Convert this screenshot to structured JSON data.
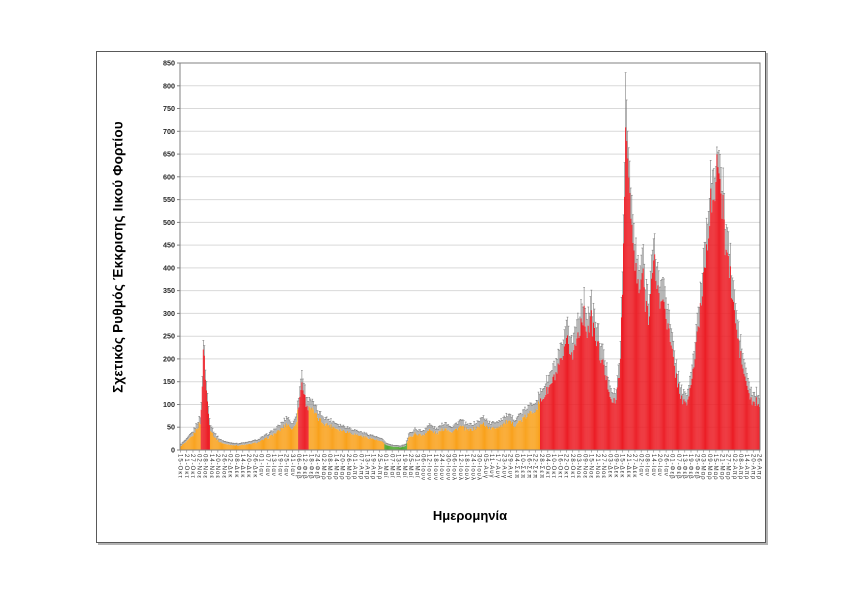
{
  "figure_title": "",
  "chart_data": {
    "type": "bar",
    "title": "",
    "ylabel": "Σχετικός Ρυθμός Έκκρισης Ιικού Φορτίου",
    "xlabel": "Ημερομηνία",
    "ylim": [
      0,
      850
    ],
    "ytick_step": 50,
    "grid": true,
    "legend": "none",
    "x_start_date": "2020-10-15",
    "num_days": 559,
    "xtick_every_days": 6,
    "months_el": [
      "Ιαν",
      "Φεβ",
      "Μαρ",
      "Απρ",
      "Μαϊ",
      "Ιουν",
      "Ιουλ",
      "Αυγ",
      "Σεπ",
      "Οκτ",
      "Νοε",
      "Δεκ"
    ],
    "colors": {
      "orange": "#F9A11B",
      "red": "#EC1C24",
      "green": "#4EA72E",
      "error": "#7F7F7F",
      "grid": "#D9D9D9",
      "axis": "#808080",
      "tick_text": "#262626",
      "xtick_text": "#333333"
    },
    "jitter_frac": 0.09,
    "anchors_format": [
      "day_index",
      "value",
      "error_plus",
      "color(o=orange,r=red,g=green)"
    ],
    "anchors": [
      [
        0,
        8,
        4,
        "o"
      ],
      [
        6,
        18,
        6,
        "o"
      ],
      [
        12,
        32,
        9,
        "o"
      ],
      [
        16,
        48,
        12,
        "o"
      ],
      [
        19,
        60,
        14,
        "o"
      ],
      [
        20,
        85,
        16,
        "r"
      ],
      [
        21,
        150,
        22,
        "r"
      ],
      [
        22,
        225,
        20,
        "r"
      ],
      [
        23,
        195,
        22,
        "r"
      ],
      [
        25,
        130,
        20,
        "r"
      ],
      [
        27,
        80,
        16,
        "r"
      ],
      [
        28,
        60,
        14,
        "r"
      ],
      [
        29,
        45,
        12,
        "o"
      ],
      [
        33,
        28,
        9,
        "o"
      ],
      [
        38,
        17,
        6,
        "o"
      ],
      [
        45,
        12,
        5,
        "o"
      ],
      [
        55,
        10,
        4,
        "o"
      ],
      [
        65,
        12,
        5,
        "o"
      ],
      [
        75,
        17,
        6,
        "o"
      ],
      [
        85,
        28,
        8,
        "o"
      ],
      [
        95,
        42,
        11,
        "o"
      ],
      [
        103,
        58,
        16,
        "o"
      ],
      [
        108,
        44,
        12,
        "o"
      ],
      [
        112,
        66,
        18,
        "o"
      ],
      [
        114,
        100,
        20,
        "r"
      ],
      [
        117,
        148,
        26,
        "r"
      ],
      [
        120,
        115,
        22,
        "r"
      ],
      [
        122,
        92,
        18,
        "r"
      ],
      [
        124,
        98,
        20,
        "o"
      ],
      [
        128,
        84,
        18,
        "o"
      ],
      [
        133,
        68,
        15,
        "o"
      ],
      [
        139,
        58,
        14,
        "o"
      ],
      [
        146,
        52,
        12,
        "o"
      ],
      [
        153,
        45,
        11,
        "o"
      ],
      [
        161,
        40,
        10,
        "o"
      ],
      [
        169,
        34,
        9,
        "o"
      ],
      [
        177,
        29,
        8,
        "o"
      ],
      [
        186,
        24,
        7,
        "o"
      ],
      [
        194,
        18,
        6,
        "o"
      ],
      [
        199,
        10,
        4,
        "g"
      ],
      [
        205,
        7,
        3,
        "g"
      ],
      [
        212,
        6,
        3,
        "g"
      ],
      [
        217,
        9,
        4,
        "g"
      ],
      [
        220,
        26,
        8,
        "o"
      ],
      [
        226,
        36,
        10,
        "o"
      ],
      [
        233,
        32,
        9,
        "o"
      ],
      [
        240,
        44,
        12,
        "o"
      ],
      [
        247,
        36,
        10,
        "o"
      ],
      [
        255,
        48,
        13,
        "o"
      ],
      [
        262,
        40,
        11,
        "o"
      ],
      [
        270,
        52,
        14,
        "o"
      ],
      [
        277,
        43,
        11,
        "o"
      ],
      [
        285,
        48,
        12,
        "o"
      ],
      [
        292,
        58,
        15,
        "o"
      ],
      [
        299,
        46,
        12,
        "o"
      ],
      [
        307,
        52,
        13,
        "o"
      ],
      [
        315,
        62,
        15,
        "o"
      ],
      [
        322,
        55,
        13,
        "o"
      ],
      [
        330,
        68,
        16,
        "o"
      ],
      [
        338,
        82,
        18,
        "o"
      ],
      [
        344,
        95,
        20,
        "o"
      ],
      [
        348,
        110,
        22,
        "r"
      ],
      [
        355,
        135,
        26,
        "r"
      ],
      [
        362,
        165,
        30,
        "r"
      ],
      [
        368,
        195,
        34,
        "r"
      ],
      [
        373,
        235,
        40,
        "r"
      ],
      [
        378,
        205,
        36,
        "r"
      ],
      [
        383,
        255,
        42,
        "r"
      ],
      [
        388,
        300,
        40,
        "r"
      ],
      [
        392,
        265,
        40,
        "r"
      ],
      [
        396,
        282,
        44,
        "r"
      ],
      [
        401,
        238,
        40,
        "r"
      ],
      [
        406,
        195,
        35,
        "r"
      ],
      [
        410,
        160,
        30,
        "r"
      ],
      [
        414,
        125,
        24,
        "r"
      ],
      [
        417,
        103,
        20,
        "r"
      ],
      [
        420,
        110,
        22,
        "r"
      ],
      [
        423,
        170,
        32,
        "r"
      ],
      [
        426,
        320,
        50,
        "r"
      ],
      [
        428,
        560,
        75,
        "r"
      ],
      [
        429,
        710,
        120,
        "r"
      ],
      [
        431,
        655,
        60,
        "r"
      ],
      [
        433,
        540,
        70,
        "r"
      ],
      [
        436,
        450,
        62,
        "r"
      ],
      [
        439,
        385,
        55,
        "r"
      ],
      [
        442,
        340,
        50,
        "r"
      ],
      [
        445,
        390,
        55,
        "r"
      ],
      [
        448,
        330,
        48,
        "r"
      ],
      [
        451,
        300,
        46,
        "r"
      ],
      [
        454,
        365,
        52,
        "r"
      ],
      [
        457,
        405,
        45,
        "r"
      ],
      [
        460,
        355,
        50,
        "r"
      ],
      [
        463,
        310,
        46,
        "r"
      ],
      [
        466,
        340,
        50,
        "r"
      ],
      [
        469,
        285,
        44,
        "r"
      ],
      [
        472,
        235,
        38,
        "r"
      ],
      [
        475,
        195,
        34,
        "r"
      ],
      [
        478,
        160,
        30,
        "r"
      ],
      [
        481,
        128,
        25,
        "r"
      ],
      [
        484,
        108,
        22,
        "r"
      ],
      [
        487,
        98,
        20,
        "r"
      ],
      [
        490,
        118,
        24,
        "r"
      ],
      [
        493,
        158,
        30,
        "r"
      ],
      [
        496,
        205,
        36,
        "r"
      ],
      [
        499,
        262,
        42,
        "r"
      ],
      [
        502,
        330,
        48,
        "r"
      ],
      [
        505,
        405,
        55,
        "r"
      ],
      [
        508,
        475,
        58,
        "r"
      ],
      [
        511,
        545,
        62,
        "r"
      ],
      [
        514,
        505,
        68,
        "r"
      ],
      [
        517,
        648,
        16,
        "r"
      ],
      [
        519,
        605,
        50,
        "r"
      ],
      [
        522,
        540,
        60,
        "r"
      ],
      [
        525,
        470,
        56,
        "r"
      ],
      [
        529,
        392,
        52,
        "r"
      ],
      [
        533,
        315,
        46,
        "r"
      ],
      [
        537,
        245,
        40,
        "r"
      ],
      [
        541,
        190,
        34,
        "r"
      ],
      [
        545,
        148,
        28,
        "r"
      ],
      [
        549,
        115,
        23,
        "r"
      ],
      [
        552,
        98,
        20,
        "r"
      ],
      [
        555,
        108,
        22,
        "r"
      ],
      [
        558,
        88,
        18,
        "r"
      ]
    ]
  }
}
